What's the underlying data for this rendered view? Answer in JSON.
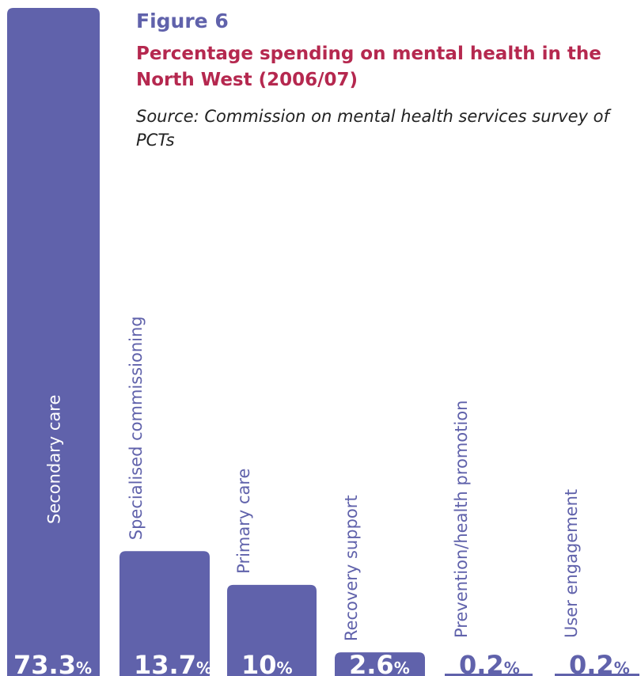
{
  "header": {
    "figure_label": "Figure 6",
    "title": "Percentage spending on mental health in the North West (2006/07)",
    "source": "Source: Commission on mental health services survey of PCTs"
  },
  "colors": {
    "bar": "#6062ab",
    "title": "#b5284f",
    "figure_label": "#6062ab",
    "label_on_bar": "#ffffff",
    "label_outside": "#6062ab"
  },
  "chart_data": {
    "type": "bar",
    "title": "Percentage spending on mental health in the North West (2006/07)",
    "categories": [
      "Secondary care",
      "Specialised commissioning",
      "Primary care",
      "Recovery support",
      "Prevention/health promotion",
      "User engagement"
    ],
    "values": [
      73.3,
      13.7,
      10,
      2.6,
      0.2,
      0.2
    ],
    "value_labels": [
      "73.3",
      "13.7",
      "10",
      "2.6",
      "0.2",
      "0.2"
    ],
    "unit": "%",
    "ylim": [
      0,
      73.3
    ],
    "xlabel": "",
    "ylabel": "",
    "grid": false,
    "legend": "none"
  }
}
